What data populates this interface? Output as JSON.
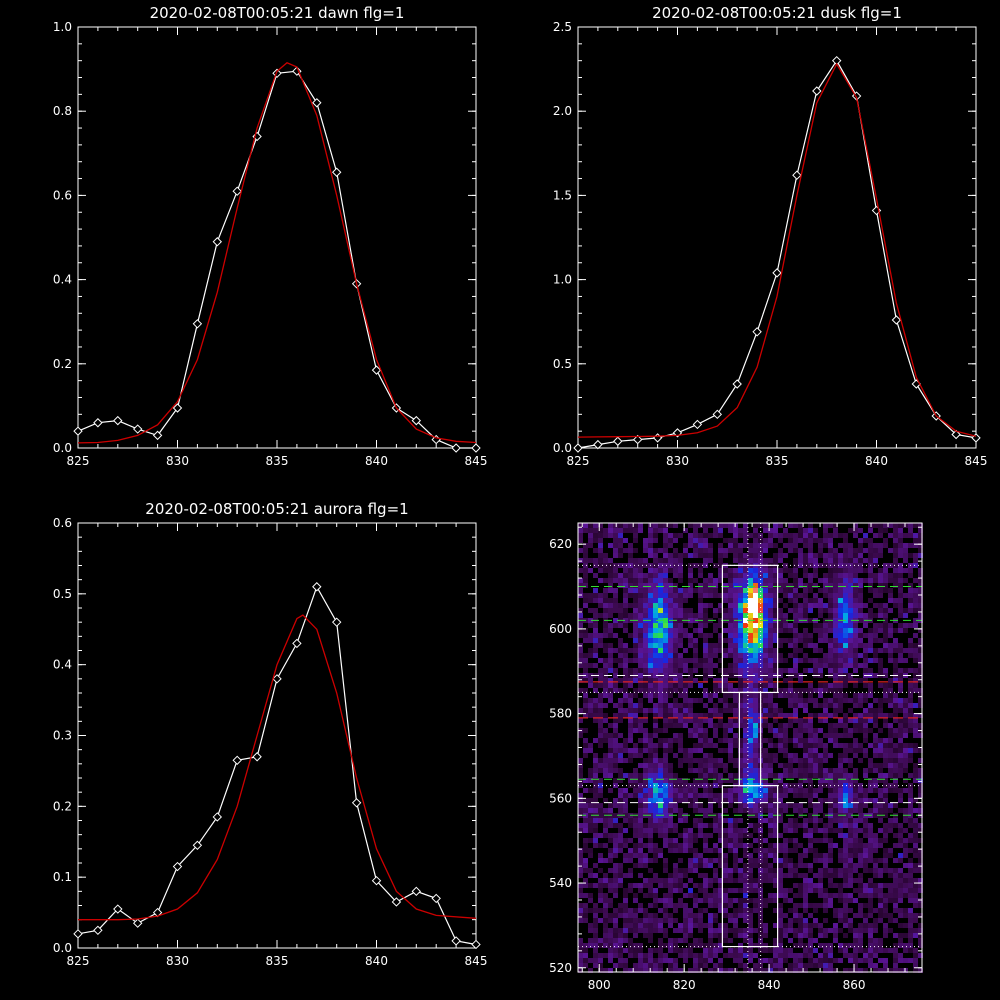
{
  "colors": {
    "background": "#000000",
    "axes": "#ffffff",
    "data_line": "#ffffff",
    "fit_line": "#cc0000"
  },
  "chart_data": [
    {
      "type": "line",
      "title": "2020-02-08T00:05:21 dawn flg=1",
      "xlim": [
        825,
        845
      ],
      "ylim": [
        0,
        1.0
      ],
      "xticks": [
        "825",
        "830",
        "835",
        "840",
        "845"
      ],
      "yticks": [
        "0.0",
        "0.2",
        "0.4",
        "0.6",
        "0.8",
        "1.0"
      ],
      "series": [
        {
          "style": "white-line-diamonds",
          "x": [
            825,
            826,
            827,
            828,
            829,
            830,
            831,
            832,
            833,
            834,
            835,
            836,
            837,
            838,
            839,
            840,
            841,
            842,
            843,
            844,
            845
          ],
          "y": [
            0.04,
            0.06,
            0.065,
            0.045,
            0.03,
            0.095,
            0.295,
            0.49,
            0.61,
            0.74,
            0.89,
            0.895,
            0.82,
            0.655,
            0.39,
            0.185,
            0.095,
            0.065,
            0.02,
            0.0,
            0.0
          ]
        },
        {
          "style": "red-fit",
          "x": [
            825,
            826,
            827,
            828,
            829,
            830,
            831,
            832,
            833,
            834,
            835,
            835.5,
            836,
            837,
            838,
            839,
            840,
            841,
            842,
            843,
            844,
            845
          ],
          "y": [
            0.012,
            0.013,
            0.018,
            0.03,
            0.055,
            0.11,
            0.21,
            0.37,
            0.57,
            0.76,
            0.895,
            0.915,
            0.905,
            0.79,
            0.6,
            0.39,
            0.21,
            0.095,
            0.045,
            0.024,
            0.016,
            0.013
          ]
        }
      ]
    },
    {
      "type": "line",
      "title": "2020-02-08T00:05:21 dusk flg=1",
      "xlim": [
        825,
        845
      ],
      "ylim": [
        0,
        2.5
      ],
      "xticks": [
        "825",
        "830",
        "835",
        "840",
        "845"
      ],
      "yticks": [
        "0.0",
        "0.5",
        "1.0",
        "1.5",
        "2.0",
        "2.5"
      ],
      "series": [
        {
          "style": "white-line-diamonds",
          "x": [
            825,
            826,
            827,
            828,
            829,
            830,
            831,
            832,
            833,
            834,
            835,
            836,
            837,
            838,
            839,
            840,
            841,
            842,
            843,
            844,
            845
          ],
          "y": [
            0.0,
            0.02,
            0.04,
            0.05,
            0.06,
            0.09,
            0.14,
            0.2,
            0.38,
            0.69,
            1.04,
            1.62,
            2.12,
            2.3,
            2.09,
            1.41,
            0.76,
            0.38,
            0.19,
            0.08,
            0.06
          ]
        },
        {
          "style": "red-fit",
          "x": [
            825,
            826,
            827,
            828,
            829,
            830,
            831,
            832,
            833,
            834,
            835,
            836,
            837,
            838,
            839,
            840,
            841,
            842,
            843,
            844,
            845
          ],
          "y": [
            0.065,
            0.066,
            0.067,
            0.068,
            0.07,
            0.075,
            0.09,
            0.13,
            0.24,
            0.48,
            0.9,
            1.5,
            2.05,
            2.28,
            2.08,
            1.48,
            0.86,
            0.42,
            0.19,
            0.1,
            0.07
          ]
        }
      ]
    },
    {
      "type": "line",
      "title": "2020-02-08T00:05:21 aurora flg=1",
      "xlim": [
        825,
        845
      ],
      "ylim": [
        0,
        0.6
      ],
      "xticks": [
        "825",
        "830",
        "835",
        "840",
        "845"
      ],
      "yticks": [
        "0.0",
        "0.1",
        "0.2",
        "0.3",
        "0.4",
        "0.5",
        "0.6"
      ],
      "series": [
        {
          "style": "white-line-diamonds",
          "x": [
            825,
            826,
            827,
            828,
            829,
            830,
            831,
            832,
            833,
            834,
            835,
            836,
            837,
            838,
            839,
            840,
            841,
            842,
            843,
            844,
            845
          ],
          "y": [
            0.02,
            0.025,
            0.055,
            0.035,
            0.05,
            0.115,
            0.145,
            0.185,
            0.265,
            0.27,
            0.38,
            0.43,
            0.51,
            0.46,
            0.205,
            0.095,
            0.065,
            0.08,
            0.07,
            0.01,
            0.005
          ]
        },
        {
          "style": "red-fit",
          "x": [
            825,
            827,
            828,
            829,
            830,
            831,
            832,
            833,
            834,
            835,
            836,
            836.3,
            837,
            838,
            839,
            840,
            841,
            842,
            843,
            845
          ],
          "y": [
            0.04,
            0.04,
            0.041,
            0.045,
            0.055,
            0.078,
            0.125,
            0.2,
            0.3,
            0.4,
            0.465,
            0.47,
            0.45,
            0.36,
            0.24,
            0.14,
            0.08,
            0.055,
            0.046,
            0.042
          ]
        }
      ]
    },
    {
      "type": "heatmap",
      "title": "",
      "xlim": [
        795,
        876
      ],
      "ylim": [
        519,
        625
      ],
      "xticks": [
        "800",
        "820",
        "840",
        "860"
      ],
      "yticks": [
        "520",
        "540",
        "560",
        "580",
        "600",
        "620"
      ],
      "colormap": "rainbow-on-purple",
      "blobs": [
        {
          "x": 814,
          "y": 600,
          "sx": 2.2,
          "sy": 7,
          "amp": 0.55
        },
        {
          "x": 836,
          "y": 602,
          "sx": 2.3,
          "sy": 7,
          "amp": 0.85
        },
        {
          "x": 836.5,
          "y": 606,
          "sx": 1.0,
          "sy": 2.5,
          "amp": 0.6
        },
        {
          "x": 858,
          "y": 602,
          "sx": 1.6,
          "sy": 6,
          "amp": 0.45
        },
        {
          "x": 836,
          "y": 576,
          "sx": 1.2,
          "sy": 6,
          "amp": 0.35
        },
        {
          "x": 814,
          "y": 561,
          "sx": 2.0,
          "sy": 4,
          "amp": 0.45
        },
        {
          "x": 836,
          "y": 562,
          "sx": 2.0,
          "sy": 2.5,
          "amp": 0.6
        },
        {
          "x": 858,
          "y": 560,
          "sx": 1.5,
          "sy": 3,
          "amp": 0.3
        }
      ],
      "boxes": [
        {
          "x0": 829,
          "x1": 842,
          "y0": 585,
          "y1": 615
        },
        {
          "x0": 833,
          "x1": 838,
          "y0": 563,
          "y1": 585
        },
        {
          "x0": 829,
          "x1": 842,
          "y0": 525,
          "y1": 563
        }
      ],
      "dotted_h": [
        615,
        585,
        563,
        525
      ],
      "dotted_v": [
        835,
        838
      ],
      "dashed_green": [
        610,
        602,
        564.5,
        556
      ],
      "dashed_white": [
        589,
        559
      ],
      "dashed_red": [
        587.5,
        579
      ]
    }
  ]
}
